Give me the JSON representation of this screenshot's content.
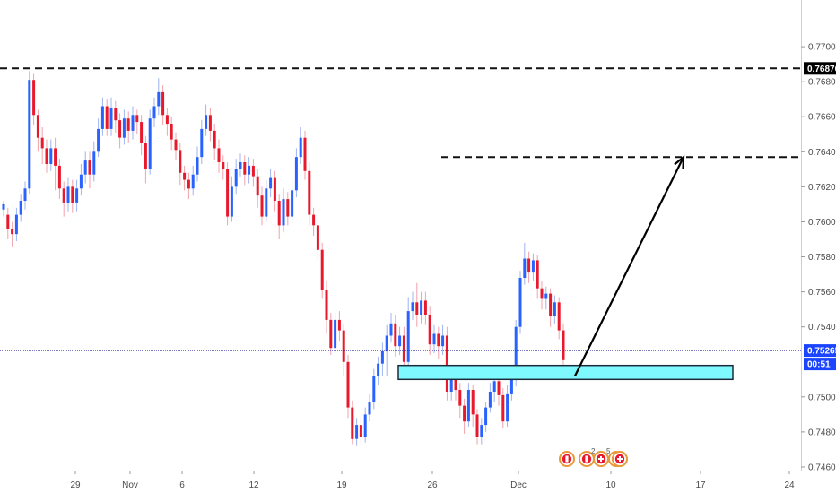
{
  "chart_data": {
    "type": "candlestick",
    "instrument_kind": "forex",
    "colors": {
      "up": "#2962ff",
      "down": "#e8192c",
      "background": "#ffffff",
      "axis_text": "#4a4a4a",
      "zone_fill": "#7ef9ff",
      "zone_border": "#1b2a3a",
      "price_line": "#2a2a9a",
      "countdown_bg": "#1a44ff",
      "level_tag_bg": "#000000"
    },
    "price_axis": {
      "min": 0.746,
      "max": 0.772,
      "ticks": [
        "0.77000",
        "0.76800",
        "0.76600",
        "0.76400",
        "0.76200",
        "0.76000",
        "0.75800",
        "0.75600",
        "0.75400",
        "0.75000",
        "0.74800",
        "0.74600"
      ]
    },
    "time_axis": {
      "ticks": [
        "29",
        "Nov",
        "6",
        "12",
        "19",
        "26",
        "Dec",
        "10",
        "17",
        "24"
      ]
    },
    "current_price": {
      "label": "0.75265",
      "value": 0.75265,
      "countdown": "00:51"
    },
    "resistance_level": {
      "label": "0.76876",
      "value": 0.76876
    },
    "target_level": {
      "value": 0.7637
    },
    "support_zone": {
      "top": 0.7518,
      "bottom": 0.751
    },
    "projection_arrow": {
      "from": 0.7512,
      "to": 0.7637
    },
    "event_markers": {
      "count_labels": [
        "2",
        "5"
      ]
    },
    "candles": [
      [
        0.7607,
        0.761,
        0.7603,
        0.7612
      ],
      [
        0.7604,
        0.7596,
        0.759,
        0.7608
      ],
      [
        0.7596,
        0.7593,
        0.7586,
        0.76
      ],
      [
        0.7593,
        0.7604,
        0.7589,
        0.7608
      ],
      [
        0.7604,
        0.7612,
        0.76,
        0.7616
      ],
      [
        0.7612,
        0.7619,
        0.7607,
        0.7623
      ],
      [
        0.7619,
        0.7681,
        0.7616,
        0.7686
      ],
      [
        0.7681,
        0.7661,
        0.7655,
        0.7685
      ],
      [
        0.7661,
        0.7648,
        0.764,
        0.7664
      ],
      [
        0.7648,
        0.7642,
        0.7633,
        0.7654
      ],
      [
        0.7642,
        0.7633,
        0.7628,
        0.7647
      ],
      [
        0.7633,
        0.7642,
        0.7629,
        0.7647
      ],
      [
        0.7642,
        0.7632,
        0.7618,
        0.7648
      ],
      [
        0.7632,
        0.7619,
        0.7613,
        0.7636
      ],
      [
        0.7619,
        0.7611,
        0.7603,
        0.7623
      ],
      [
        0.7611,
        0.762,
        0.7606,
        0.7625
      ],
      [
        0.762,
        0.7611,
        0.7605,
        0.7624
      ],
      [
        0.7611,
        0.7619,
        0.7606,
        0.7624
      ],
      [
        0.7619,
        0.7627,
        0.7615,
        0.7633
      ],
      [
        0.7627,
        0.7635,
        0.7622,
        0.764
      ],
      [
        0.7635,
        0.7627,
        0.7619,
        0.764
      ],
      [
        0.7627,
        0.764,
        0.7623,
        0.7646
      ],
      [
        0.764,
        0.7653,
        0.7637,
        0.7659
      ],
      [
        0.7653,
        0.7666,
        0.7649,
        0.7671
      ],
      [
        0.7666,
        0.7653,
        0.7649,
        0.767
      ],
      [
        0.7653,
        0.7665,
        0.7649,
        0.7671
      ],
      [
        0.7665,
        0.7658,
        0.7651,
        0.7669
      ],
      [
        0.7658,
        0.7648,
        0.7642,
        0.7662
      ],
      [
        0.7648,
        0.7659,
        0.7644,
        0.7664
      ],
      [
        0.7659,
        0.7652,
        0.7645,
        0.7663
      ],
      [
        0.7652,
        0.7661,
        0.7647,
        0.7666
      ],
      [
        0.7661,
        0.7657,
        0.765,
        0.7664
      ],
      [
        0.7657,
        0.7645,
        0.7638,
        0.7661
      ],
      [
        0.7645,
        0.763,
        0.7622,
        0.7649
      ],
      [
        0.763,
        0.7659,
        0.7627,
        0.7664
      ],
      [
        0.7659,
        0.7666,
        0.7654,
        0.7671
      ],
      [
        0.7666,
        0.7674,
        0.7661,
        0.7682
      ],
      [
        0.7674,
        0.7661,
        0.7655,
        0.7678
      ],
      [
        0.7661,
        0.7656,
        0.7649,
        0.7665
      ],
      [
        0.7656,
        0.7647,
        0.7641,
        0.766
      ],
      [
        0.7647,
        0.7641,
        0.7635,
        0.7651
      ],
      [
        0.7641,
        0.7628,
        0.7621,
        0.7645
      ],
      [
        0.7628,
        0.7624,
        0.7618,
        0.7632
      ],
      [
        0.7624,
        0.7619,
        0.7613,
        0.7628
      ],
      [
        0.7619,
        0.7627,
        0.7615,
        0.7632
      ],
      [
        0.7627,
        0.7637,
        0.7623,
        0.7643
      ],
      [
        0.7637,
        0.7653,
        0.7633,
        0.7658
      ],
      [
        0.7653,
        0.7661,
        0.7649,
        0.7667
      ],
      [
        0.7661,
        0.7652,
        0.7646,
        0.7665
      ],
      [
        0.7652,
        0.7642,
        0.7635,
        0.7656
      ],
      [
        0.7642,
        0.7634,
        0.7628,
        0.7647
      ],
      [
        0.7634,
        0.763,
        0.7624,
        0.7638
      ],
      [
        0.763,
        0.7603,
        0.7598,
        0.7634
      ],
      [
        0.7603,
        0.762,
        0.76,
        0.7626
      ],
      [
        0.762,
        0.763,
        0.7616,
        0.7636
      ],
      [
        0.763,
        0.7634,
        0.7626,
        0.7639
      ],
      [
        0.7634,
        0.7627,
        0.7621,
        0.7638
      ],
      [
        0.7627,
        0.7632,
        0.7622,
        0.7637
      ],
      [
        0.7632,
        0.7626,
        0.762,
        0.7636
      ],
      [
        0.7626,
        0.7615,
        0.7608,
        0.763
      ],
      [
        0.7615,
        0.7603,
        0.7598,
        0.762
      ],
      [
        0.7603,
        0.7619,
        0.76,
        0.7624
      ],
      [
        0.7619,
        0.7625,
        0.7614,
        0.763
      ],
      [
        0.7625,
        0.7612,
        0.7606,
        0.7629
      ],
      [
        0.7612,
        0.7598,
        0.759,
        0.7616
      ],
      [
        0.7598,
        0.7613,
        0.7594,
        0.7619
      ],
      [
        0.7613,
        0.7603,
        0.7598,
        0.7617
      ],
      [
        0.7603,
        0.7618,
        0.7599,
        0.7623
      ],
      [
        0.7618,
        0.7637,
        0.7614,
        0.7642
      ],
      [
        0.7637,
        0.7648,
        0.7633,
        0.7654
      ],
      [
        0.7648,
        0.7629,
        0.7624,
        0.7652
      ],
      [
        0.7629,
        0.7604,
        0.7598,
        0.7634
      ],
      [
        0.7604,
        0.7598,
        0.7592,
        0.7608
      ],
      [
        0.7598,
        0.7584,
        0.7578,
        0.7602
      ],
      [
        0.7584,
        0.7561,
        0.7556,
        0.7588
      ],
      [
        0.7561,
        0.7544,
        0.7536,
        0.7566
      ],
      [
        0.7544,
        0.7528,
        0.7524,
        0.7548
      ],
      [
        0.7528,
        0.7544,
        0.7525,
        0.7548
      ],
      [
        0.7544,
        0.7538,
        0.7532,
        0.7549
      ],
      [
        0.7538,
        0.752,
        0.7512,
        0.7542
      ],
      [
        0.752,
        0.7494,
        0.7488,
        0.7524
      ],
      [
        0.7494,
        0.7476,
        0.7473,
        0.7498
      ],
      [
        0.7476,
        0.7484,
        0.7472,
        0.7488
      ],
      [
        0.7484,
        0.7477,
        0.7473,
        0.7488
      ],
      [
        0.7477,
        0.749,
        0.7474,
        0.7494
      ],
      [
        0.749,
        0.7497,
        0.7486,
        0.7502
      ],
      [
        0.7497,
        0.7512,
        0.7493,
        0.7516
      ],
      [
        0.7512,
        0.7519,
        0.7507,
        0.7523
      ],
      [
        0.7519,
        0.7526,
        0.7512,
        0.7531
      ],
      [
        0.7526,
        0.7535,
        0.7512,
        0.7541
      ],
      [
        0.7535,
        0.7542,
        0.7531,
        0.7548
      ],
      [
        0.7542,
        0.7529,
        0.7523,
        0.7547
      ],
      [
        0.7529,
        0.7535,
        0.7524,
        0.754
      ],
      [
        0.7535,
        0.752,
        0.7514,
        0.754
      ],
      [
        0.752,
        0.7549,
        0.7516,
        0.7557
      ],
      [
        0.7549,
        0.7554,
        0.7544,
        0.756
      ],
      [
        0.7554,
        0.7547,
        0.754,
        0.7565
      ],
      [
        0.7547,
        0.7555,
        0.7542,
        0.756
      ],
      [
        0.7555,
        0.7547,
        0.7541,
        0.756
      ],
      [
        0.7547,
        0.753,
        0.7524,
        0.7552
      ],
      [
        0.753,
        0.7536,
        0.7525,
        0.7541
      ],
      [
        0.7536,
        0.7529,
        0.7522,
        0.754
      ],
      [
        0.7529,
        0.7535,
        0.7524,
        0.7541
      ],
      [
        0.7535,
        0.7503,
        0.7498,
        0.754
      ],
      [
        0.7503,
        0.7511,
        0.7498,
        0.7516
      ],
      [
        0.7511,
        0.7504,
        0.7498,
        0.7515
      ],
      [
        0.7504,
        0.7495,
        0.7488,
        0.7508
      ],
      [
        0.7495,
        0.7486,
        0.7479,
        0.7499
      ],
      [
        0.7486,
        0.7504,
        0.7483,
        0.7508
      ],
      [
        0.7504,
        0.749,
        0.7483,
        0.7507
      ],
      [
        0.749,
        0.7477,
        0.7473,
        0.7493
      ],
      [
        0.7477,
        0.7484,
        0.7473,
        0.7488
      ],
      [
        0.7484,
        0.7494,
        0.748,
        0.7497
      ],
      [
        0.7494,
        0.7503,
        0.7491,
        0.7508
      ],
      [
        0.7503,
        0.7509,
        0.7497,
        0.7513
      ],
      [
        0.7509,
        0.7501,
        0.7495,
        0.7514
      ],
      [
        0.7501,
        0.7486,
        0.7482,
        0.7505
      ],
      [
        0.7486,
        0.7502,
        0.7483,
        0.7507
      ],
      [
        0.7502,
        0.751,
        0.7498,
        0.7514
      ],
      [
        0.751,
        0.754,
        0.7506,
        0.7544
      ],
      [
        0.754,
        0.7568,
        0.7536,
        0.7572
      ],
      [
        0.7568,
        0.7579,
        0.7564,
        0.7588
      ],
      [
        0.7579,
        0.7571,
        0.7565,
        0.7583
      ],
      [
        0.7571,
        0.7578,
        0.7566,
        0.7582
      ],
      [
        0.7578,
        0.7562,
        0.7556,
        0.7581
      ],
      [
        0.7562,
        0.7556,
        0.755,
        0.7566
      ],
      [
        0.7556,
        0.7559,
        0.755,
        0.7563
      ],
      [
        0.7559,
        0.7546,
        0.754,
        0.7562
      ],
      [
        0.7546,
        0.7554,
        0.7542,
        0.7558
      ],
      [
        0.7554,
        0.7538,
        0.7533,
        0.7557
      ],
      [
        0.7538,
        0.7521,
        0.7518,
        0.7542
      ]
    ]
  }
}
